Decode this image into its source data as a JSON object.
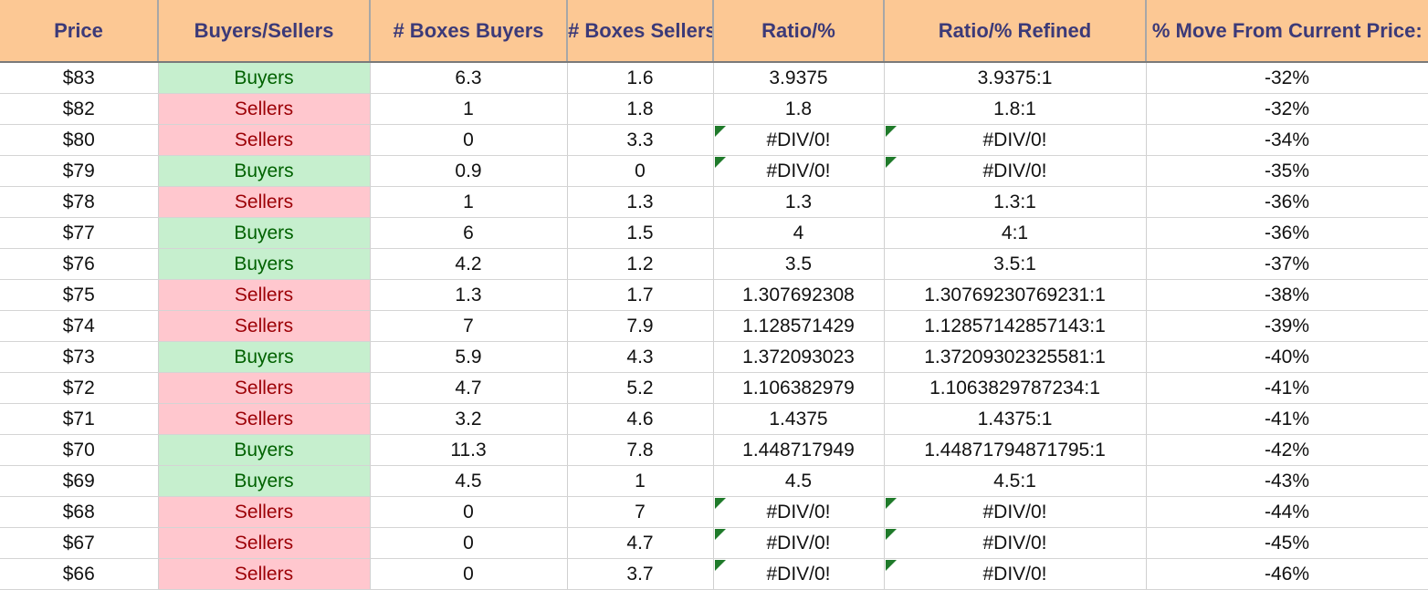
{
  "columns": [
    "Price",
    "Buyers/Sellers",
    "# Boxes Buyers",
    "# Boxes Sellers",
    "Ratio/%",
    "Ratio/% Refined",
    "% Move From Current Price:"
  ],
  "rows": [
    {
      "price": "$83",
      "side": "Buyers",
      "buyers": "6.3",
      "sellers": "1.6",
      "ratio": "3.9375",
      "refined": "3.9375:1",
      "move": "-32%"
    },
    {
      "price": "$82",
      "side": "Sellers",
      "buyers": "1",
      "sellers": "1.8",
      "ratio": "1.8",
      "refined": "1.8:1",
      "move": "-32%"
    },
    {
      "price": "$80",
      "side": "Sellers",
      "buyers": "0",
      "sellers": "3.3",
      "ratio": "#DIV/0!",
      "refined": "#DIV/0!",
      "move": "-34%"
    },
    {
      "price": "$79",
      "side": "Buyers",
      "buyers": "0.9",
      "sellers": "0",
      "ratio": "#DIV/0!",
      "refined": "#DIV/0!",
      "move": "-35%"
    },
    {
      "price": "$78",
      "side": "Sellers",
      "buyers": "1",
      "sellers": "1.3",
      "ratio": "1.3",
      "refined": "1.3:1",
      "move": "-36%"
    },
    {
      "price": "$77",
      "side": "Buyers",
      "buyers": "6",
      "sellers": "1.5",
      "ratio": "4",
      "refined": "4:1",
      "move": "-36%"
    },
    {
      "price": "$76",
      "side": "Buyers",
      "buyers": "4.2",
      "sellers": "1.2",
      "ratio": "3.5",
      "refined": "3.5:1",
      "move": "-37%"
    },
    {
      "price": "$75",
      "side": "Sellers",
      "buyers": "1.3",
      "sellers": "1.7",
      "ratio": "1.307692308",
      "refined": "1.30769230769231:1",
      "move": "-38%"
    },
    {
      "price": "$74",
      "side": "Sellers",
      "buyers": "7",
      "sellers": "7.9",
      "ratio": "1.128571429",
      "refined": "1.12857142857143:1",
      "move": "-39%"
    },
    {
      "price": "$73",
      "side": "Buyers",
      "buyers": "5.9",
      "sellers": "4.3",
      "ratio": "1.372093023",
      "refined": "1.37209302325581:1",
      "move": "-40%"
    },
    {
      "price": "$72",
      "side": "Sellers",
      "buyers": "4.7",
      "sellers": "5.2",
      "ratio": "1.106382979",
      "refined": "1.1063829787234:1",
      "move": "-41%"
    },
    {
      "price": "$71",
      "side": "Sellers",
      "buyers": "3.2",
      "sellers": "4.6",
      "ratio": "1.4375",
      "refined": "1.4375:1",
      "move": "-41%"
    },
    {
      "price": "$70",
      "side": "Buyers",
      "buyers": "11.3",
      "sellers": "7.8",
      "ratio": "1.448717949",
      "refined": "1.44871794871795:1",
      "move": "-42%"
    },
    {
      "price": "$69",
      "side": "Buyers",
      "buyers": "4.5",
      "sellers": "1",
      "ratio": "4.5",
      "refined": "4.5:1",
      "move": "-43%"
    },
    {
      "price": "$68",
      "side": "Sellers",
      "buyers": "0",
      "sellers": "7",
      "ratio": "#DIV/0!",
      "refined": "#DIV/0!",
      "move": "-44%"
    },
    {
      "price": "$67",
      "side": "Sellers",
      "buyers": "0",
      "sellers": "4.7",
      "ratio": "#DIV/0!",
      "refined": "#DIV/0!",
      "move": "-45%"
    },
    {
      "price": "$66",
      "side": "Sellers",
      "buyers": "0",
      "sellers": "3.7",
      "ratio": "#DIV/0!",
      "refined": "#DIV/0!",
      "move": "-46%"
    }
  ],
  "colors": {
    "header_bg": "#fcc894",
    "header_text": "#3c3a78",
    "buyers_bg": "#c6efce",
    "buyers_text": "#006100",
    "sellers_bg": "#ffc7ce",
    "sellers_text": "#9c0006",
    "error_flag": "#1f7a2a"
  }
}
